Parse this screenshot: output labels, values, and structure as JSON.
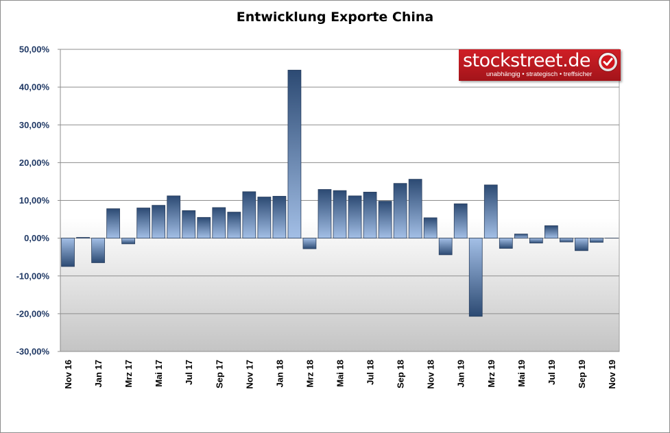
{
  "chart_data": {
    "type": "bar",
    "title": "Entwicklung Exporte China",
    "xlabel": "",
    "ylabel": "",
    "ylim": [
      -30,
      50
    ],
    "yticks": [
      "50,00%",
      "40,00%",
      "30,00%",
      "20,00%",
      "10,00%",
      "0,00%",
      "-10,00%",
      "-20,00%",
      "-30,00%"
    ],
    "ytick_values": [
      50,
      40,
      30,
      20,
      10,
      0,
      -10,
      -20,
      -30
    ],
    "grid": true,
    "bar_color": "#2f4f7a",
    "bar_color_light": "#9cb8e0",
    "categories": [
      "Nov 16",
      "Dez 16",
      "Jan 17",
      "Feb 17",
      "Mrz 17",
      "Apr 17",
      "Mai 17",
      "Jun 17",
      "Jul 17",
      "Aug 17",
      "Sep 17",
      "Okt 17",
      "Nov 17",
      "Dez 17",
      "Jan 18",
      "Feb 18",
      "Mrz 18",
      "Apr 18",
      "Mai 18",
      "Jun 18",
      "Jul 18",
      "Aug 18",
      "Sep 18",
      "Okt 18",
      "Nov 18",
      "Dez 18",
      "Jan 19",
      "Feb 19",
      "Mrz 19",
      "Apr 19",
      "Mai 19",
      "Jun 19",
      "Jul 19",
      "Aug 19",
      "Sep 19",
      "Okt 19",
      "Nov 19"
    ],
    "tick_labels": [
      "Nov 16",
      "",
      "Jan 17",
      "",
      "Mrz 17",
      "",
      "Mai 17",
      "",
      "Jul 17",
      "",
      "Sep 17",
      "",
      "Nov 17",
      "",
      "Jan 18",
      "",
      "Mrz 18",
      "",
      "Mai 18",
      "",
      "Jul 18",
      "",
      "Sep 18",
      "",
      "Nov 18",
      "",
      "Jan 19",
      "",
      "Mrz 19",
      "",
      "Mai 19",
      "",
      "Jul 19",
      "",
      "Sep 19",
      "",
      "Nov 19"
    ],
    "values": [
      -7.5,
      0.2,
      -6.5,
      7.8,
      -1.5,
      8.0,
      8.7,
      11.2,
      7.3,
      5.5,
      8.1,
      6.9,
      12.3,
      10.9,
      11.1,
      44.5,
      -2.8,
      12.9,
      12.6,
      11.2,
      12.2,
      9.8,
      14.5,
      15.6,
      5.4,
      -4.4,
      9.1,
      -20.7,
      14.1,
      -2.7,
      1.1,
      -1.3,
      3.3,
      -1.0,
      -3.3,
      -1.1,
      0
    ]
  },
  "logo": {
    "text": "stockstreet.de",
    "tagline": "unabhängig • strategisch • treffsicher",
    "color": "#c4161c"
  }
}
